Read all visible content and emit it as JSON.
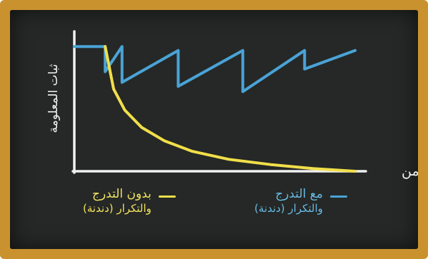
{
  "chart_data": {
    "type": "line",
    "title": "",
    "xlabel": "الزمن",
    "ylabel": "ثبات المعلومة",
    "x_range": [
      0,
      100
    ],
    "y_range": [
      0,
      100
    ],
    "grid": false,
    "legend_position": "bottom",
    "series": [
      {
        "name": "مع التدرج والتكرار (دندنة)",
        "color": "#4aa3d6",
        "x": [
          0,
          11,
          11,
          17,
          17,
          37,
          37,
          60,
          60,
          82,
          82,
          100
        ],
        "y": [
          94,
          94,
          75,
          94,
          67,
          91,
          64,
          91,
          60,
          91,
          77,
          91
        ]
      },
      {
        "name": "بدون التدرج والتكرار (دندنة)",
        "color": "#f1df4a",
        "x": [
          11,
          14,
          18,
          24,
          32,
          42,
          55,
          70,
          85,
          100
        ],
        "y": [
          94,
          62,
          46,
          33,
          23,
          15,
          9,
          5,
          2,
          0
        ]
      }
    ]
  },
  "legend": {
    "with_line1": "مع التدرج",
    "with_line2": "والتكرار (دندنة)",
    "without_line1": "بدون التدرج",
    "without_line2": "والتكرار (دندنة)"
  },
  "colors": {
    "frame": "#c9922f",
    "board": "#252826",
    "axis": "#f0f0f0",
    "series_with": "#4aa3d6",
    "series_without": "#f1df4a"
  }
}
